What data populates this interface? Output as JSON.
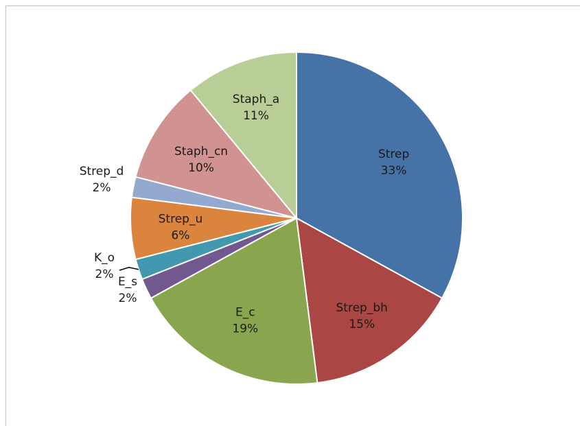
{
  "chart_data": {
    "type": "pie",
    "title": "",
    "slices": [
      {
        "label": "Strep",
        "value": 33,
        "value_label": "33%",
        "color": "#4572a7"
      },
      {
        "label": "Strep_bh",
        "value": 15,
        "value_label": "15%",
        "color": "#aa4643"
      },
      {
        "label": "E_c",
        "value": 19,
        "value_label": "19%",
        "color": "#89a54e"
      },
      {
        "label": "E_s",
        "value": 2,
        "value_label": "2%",
        "color": "#71588f"
      },
      {
        "label": "K_o",
        "value": 2,
        "value_label": "2%",
        "color": "#4198af"
      },
      {
        "label": "Strep_u",
        "value": 6,
        "value_label": "6%",
        "color": "#db843d"
      },
      {
        "label": "Strep_d",
        "value": 2,
        "value_label": "2%",
        "color": "#93a9cf"
      },
      {
        "label": "Staph_cn",
        "value": 10,
        "value_label": "10%",
        "color": "#d19392"
      },
      {
        "label": "Staph_a",
        "value": 11,
        "value_label": "11%",
        "color": "#b9cd96"
      }
    ]
  }
}
